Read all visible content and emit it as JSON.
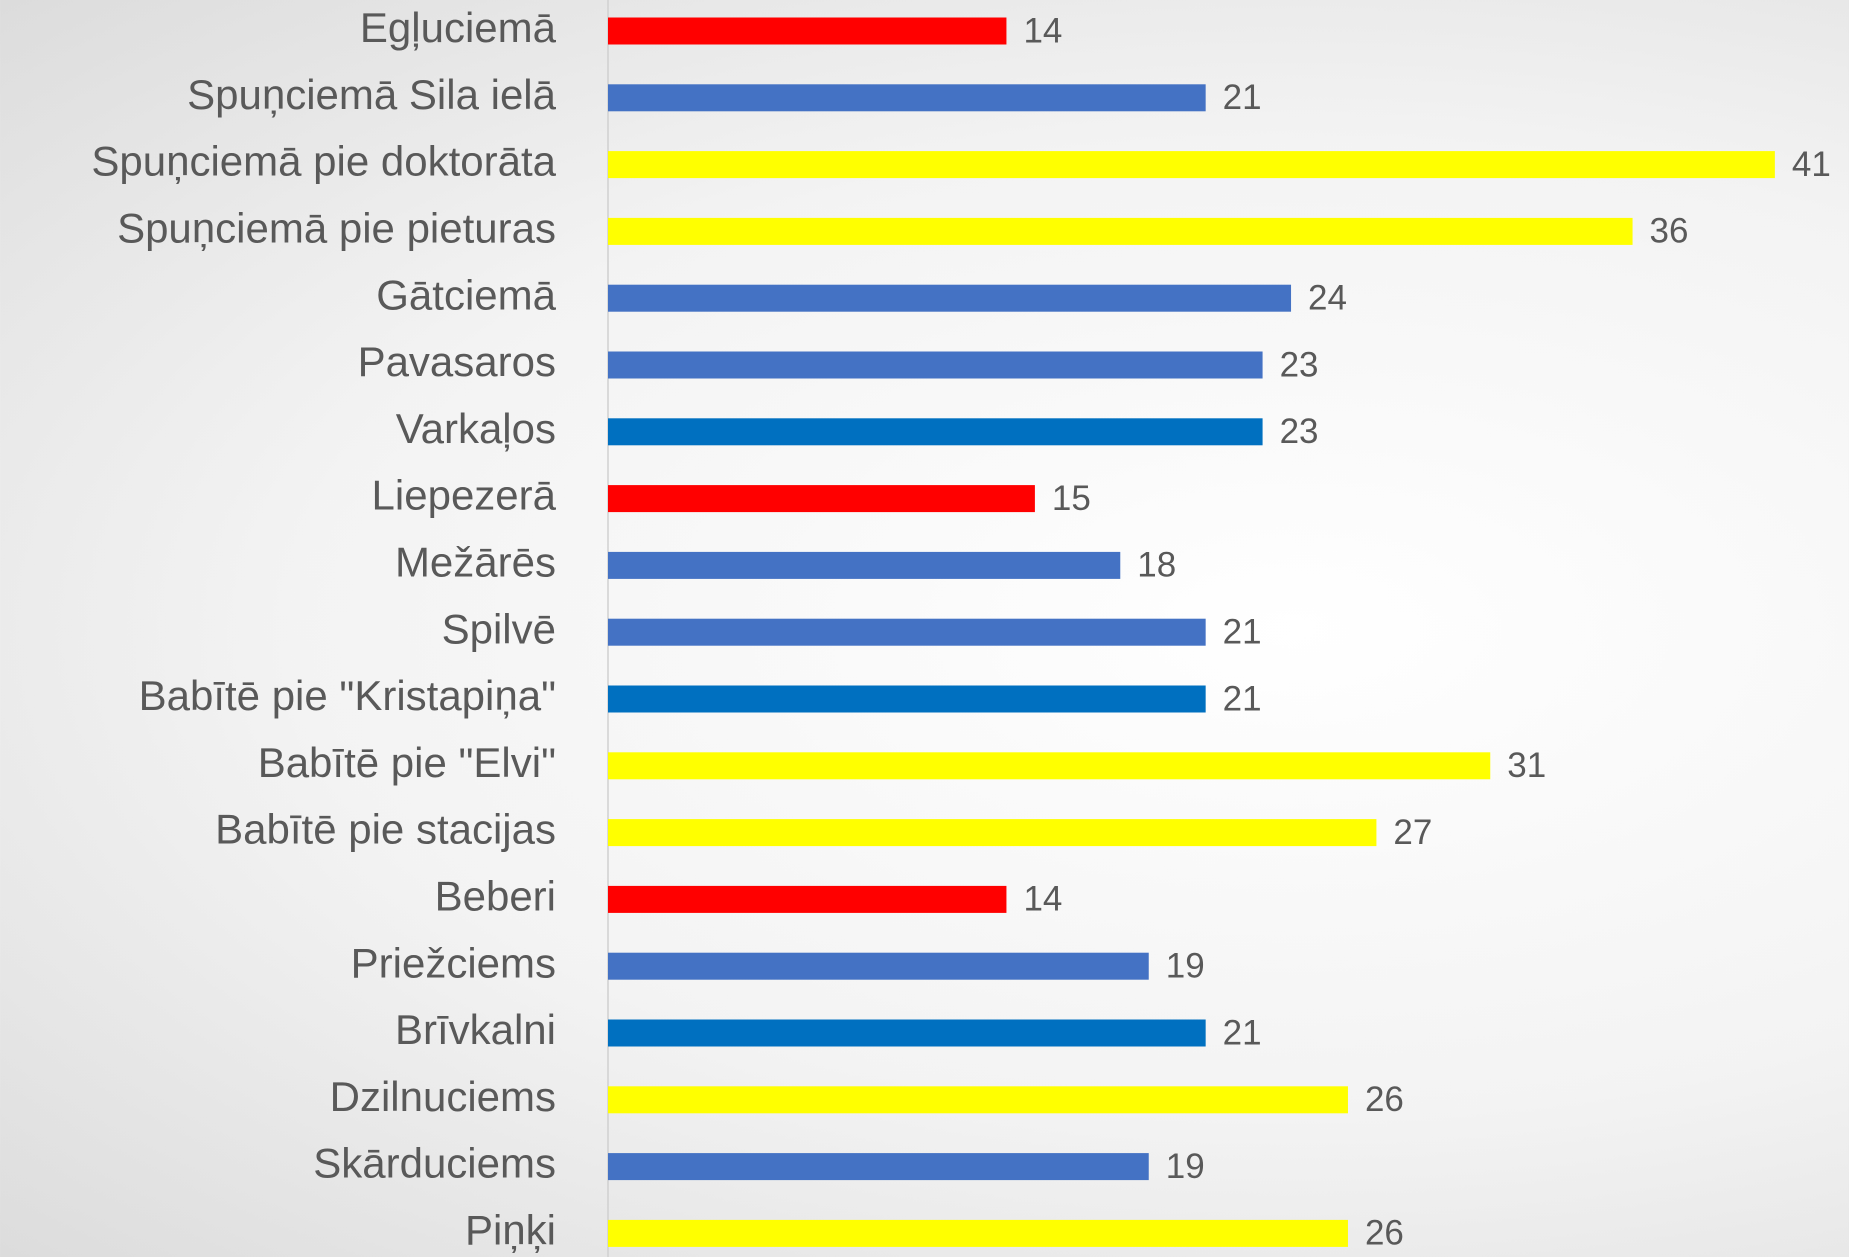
{
  "chart_data": {
    "type": "bar",
    "orientation": "horizontal",
    "categories": [
      "Egļuciemā",
      "Spuņciemā Sila ielā",
      "Spuņciemā pie doktorāta",
      "Spuņciemā pie pieturas",
      "Gātciemā",
      "Pavasaros",
      "Varkaļos",
      "Liepezerā",
      "Mežārēs",
      "Spilvē",
      "Babītē pie \"Kristapiņa\"",
      "Babītē pie \"Elvi\"",
      "Babītē pie stacijas",
      "Beberi",
      "Priežciems",
      "Brīvkalni",
      "Dzilnuciems",
      "Skārduciems",
      "Piņķi"
    ],
    "values": [
      14,
      21,
      41,
      36,
      24,
      23,
      23,
      15,
      18,
      21,
      21,
      31,
      27,
      14,
      19,
      21,
      26,
      19,
      26
    ],
    "colors": [
      "#ff0000",
      "#4472c4",
      "#ffff00",
      "#ffff00",
      "#4472c4",
      "#4472c4",
      "#0070c0",
      "#ff0000",
      "#4472c4",
      "#4472c4",
      "#0070c0",
      "#ffff00",
      "#ffff00",
      "#ff0000",
      "#4472c4",
      "#0070c0",
      "#ffff00",
      "#4472c4",
      "#ffff00"
    ]
  }
}
